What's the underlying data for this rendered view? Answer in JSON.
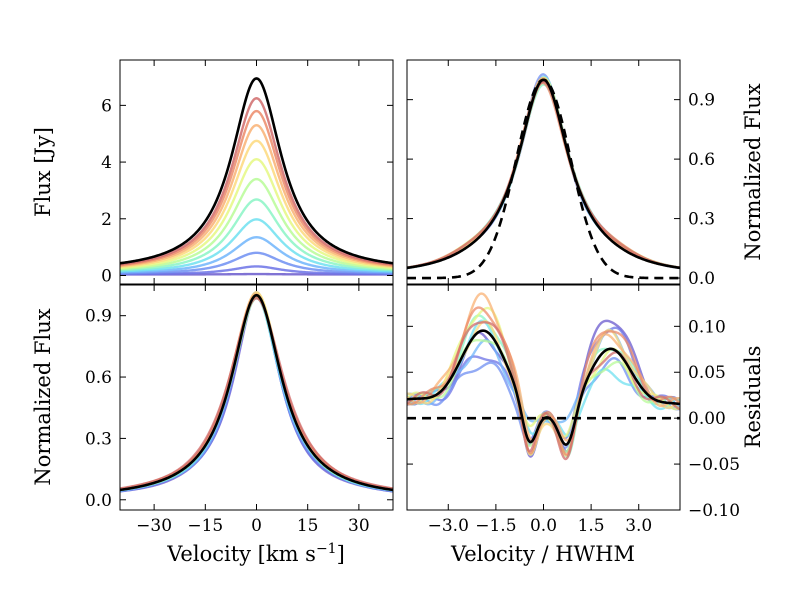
{
  "chart_data": [
    {
      "panel": "top-left",
      "type": "line",
      "ylabel": "Flux [Jy]",
      "xlabel": "",
      "xlim": [
        -40,
        40
      ],
      "ylim": [
        -0.3,
        7.6
      ],
      "yticks": [
        "0",
        "2",
        "4",
        "6"
      ],
      "ytick_values": [
        0,
        2,
        4,
        6
      ],
      "xticks_visible": false,
      "series_model": "lorentzian, HWHM 9 km/s",
      "amplitudes": [
        0.05,
        0.32,
        0.8,
        1.35,
        1.98,
        2.68,
        3.4,
        4.1,
        4.75,
        5.3,
        5.8,
        6.25,
        6.95
      ],
      "colors": [
        "#6a5acd",
        "#6c73e6",
        "#6f8ff2",
        "#70b5fb",
        "#6fe0f0",
        "#8bf5c6",
        "#b8fb98",
        "#e5f883",
        "#fdd97c",
        "#f9b174",
        "#ec8b6a",
        "#d06b6b",
        "#000000"
      ],
      "baseline_offset": [
        0.06,
        0.06,
        0.07,
        0.08,
        0.09,
        0.1,
        0.11,
        0.12,
        0.13,
        0.14,
        0.15,
        0.16,
        0.17
      ]
    },
    {
      "panel": "top-right",
      "type": "line",
      "ylabel": "Normalized Flux",
      "ylabel_side": "right",
      "xlim": [
        -4.3,
        4.3
      ],
      "ylim": [
        -0.03,
        1.1
      ],
      "yticks": [
        "0.0",
        "0.3",
        "0.6",
        "0.9"
      ],
      "ytick_values": [
        0.0,
        0.3,
        0.6,
        0.9
      ],
      "xticks_visible": false,
      "reference_curve": "gaussian, dashed black",
      "peak": 1.0
    },
    {
      "panel": "bottom-left",
      "type": "line",
      "ylabel": "Normalized Flux",
      "xlabel": "Velocity [km s",
      "xlabel_sup": "−1",
      "xlabel_suffix": "]",
      "xlim": [
        -40,
        40
      ],
      "ylim": [
        -0.05,
        1.05
      ],
      "xticks": [
        "−30",
        "−15",
        "0",
        "15",
        "30"
      ],
      "xtick_values": [
        -30,
        -15,
        0,
        15,
        30
      ],
      "yticks": [
        "0.0",
        "0.3",
        "0.6",
        "0.9"
      ],
      "ytick_values": [
        0.0,
        0.3,
        0.6,
        0.9
      ]
    },
    {
      "panel": "bottom-right",
      "type": "line",
      "ylabel": "Residuals",
      "ylabel_side": "right",
      "xlabel": "Velocity / HWHM",
      "xlim": [
        -4.3,
        4.3
      ],
      "ylim": [
        -0.1,
        0.145
      ],
      "xticks": [
        "−3.0",
        "−1.5",
        "0.0",
        "1.5",
        "3.0"
      ],
      "xtick_values": [
        -3.0,
        -1.5,
        0.0,
        1.5,
        3.0
      ],
      "yticks": [
        "−0.10",
        "−0.05",
        "0.00",
        "0.05",
        "0.10"
      ],
      "ytick_values": [
        -0.1,
        -0.05,
        0.0,
        0.05,
        0.1
      ],
      "zero_line": "dashed black",
      "residual_peak_left": 0.095,
      "residual_peak_right": 0.075,
      "residual_dip": -0.04
    }
  ]
}
